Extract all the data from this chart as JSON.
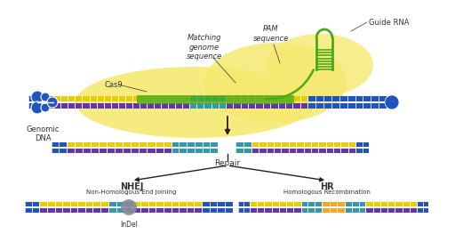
{
  "bg_color": "#ffffff",
  "cas9_blob_color": "#f5e970",
  "dna_blue": "#2255bb",
  "dna_teal": "#3399aa",
  "dna_purple": "#6633aa",
  "dna_yellow": "#e8cc00",
  "guide_green": "#4aaa1a",
  "guide_green_dark": "#2d7a10",
  "indel_color": "#888899",
  "hr_insert_color": "#f5a623",
  "arrow_color": "#222222",
  "label_color": "#333333",
  "labels": {
    "cas9": "Cas9",
    "genomic_dna": "Genomic\nDNA",
    "matching": "Matching\ngenome\nsequence",
    "pam": "PAM\nsequence",
    "guide_rna": "Guide RNA",
    "repair": "Repair",
    "nhej": "NHEJ",
    "nhej_sub": "Non-Homologous End Joining",
    "hr": "HR",
    "hr_sub": "Homologous Recombination",
    "indel": "InDel"
  }
}
